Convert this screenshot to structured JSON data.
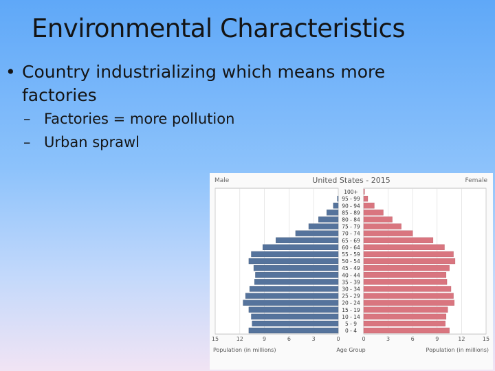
{
  "slide": {
    "title": "Environmental Characteristics",
    "bullets": [
      {
        "level": 1,
        "marker": "•",
        "text": "Country industrializing which means more factories"
      },
      {
        "level": 2,
        "marker": "–",
        "text": "Factories = more pollution"
      },
      {
        "level": 2,
        "marker": "–",
        "text": "Urban sprawl"
      }
    ]
  },
  "chart_data": {
    "type": "bar",
    "orientation": "horizontal-population-pyramid",
    "title": "United States - 2015",
    "left_label": "Male",
    "right_label": "Female",
    "xlabel_left": "Population (in millions)",
    "xlabel_center": "Age Group",
    "xlabel_right": "Population (in millions)",
    "x_ticks_left": [
      "15",
      "12",
      "9",
      "6",
      "3",
      "0"
    ],
    "x_ticks_right": [
      "0",
      "3",
      "6",
      "9",
      "12",
      "15"
    ],
    "xlim": [
      0,
      15
    ],
    "grid": true,
    "categories": [
      "100+",
      "95 - 99",
      "90 - 94",
      "85 - 89",
      "80 - 84",
      "75 - 79",
      "70 - 74",
      "65 - 69",
      "60 - 64",
      "55 - 59",
      "50 - 54",
      "45 - 49",
      "40 - 44",
      "35 - 39",
      "30 - 34",
      "25 - 29",
      "20 - 24",
      "15 - 19",
      "10 - 14",
      "5 - 9",
      "0 - 4"
    ],
    "series": [
      {
        "name": "Male",
        "color": "#55739c",
        "values": [
          0.0,
          0.1,
          0.6,
          1.4,
          2.4,
          3.6,
          5.2,
          7.6,
          9.2,
          10.6,
          10.9,
          10.3,
          10.1,
          10.2,
          10.8,
          11.3,
          11.6,
          10.9,
          10.6,
          10.5,
          10.9
        ]
      },
      {
        "name": "Female",
        "color": "#d9757f",
        "values": [
          0.1,
          0.5,
          1.3,
          2.4,
          3.5,
          4.6,
          6.0,
          8.5,
          9.9,
          11.0,
          11.2,
          10.5,
          10.1,
          10.2,
          10.7,
          11.0,
          11.1,
          10.3,
          10.1,
          10.0,
          10.5
        ]
      }
    ]
  }
}
